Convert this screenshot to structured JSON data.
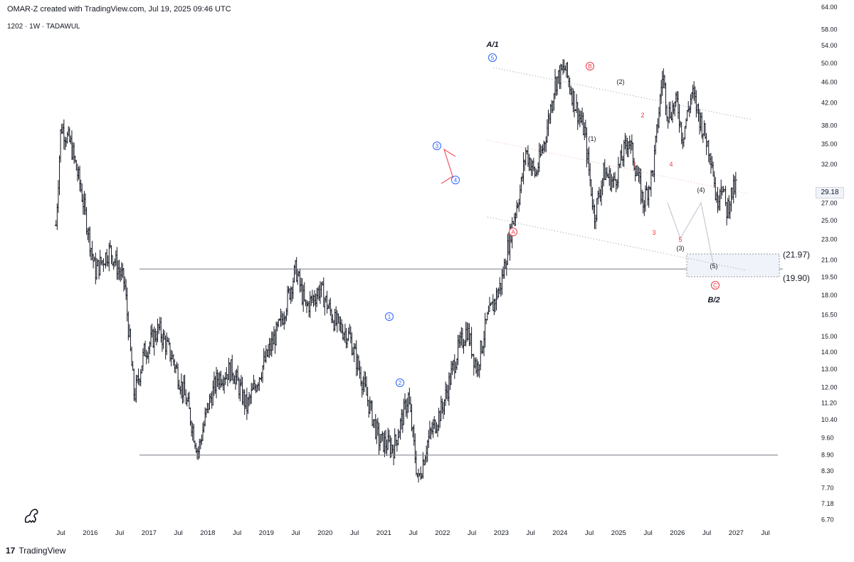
{
  "header": {
    "caption": "OMAR-Z created with TradingView.com, Jul 19, 2025 09:46 UTC",
    "symbol_line": "1202 · 1W · TADAWUL"
  },
  "last_price": "29.18",
  "footer": {
    "brand": "TradingView",
    "logo_glyph": "17"
  },
  "levels": {
    "upper": "(21.97)",
    "lower": "(19.90)"
  },
  "colors": {
    "bars": "#131722",
    "blue_wave": "#2962ff",
    "red_wave": "#f23645",
    "grid": "#e0e3eb"
  },
  "chart_data": {
    "type": "ohlc-bar",
    "y_scale": "log",
    "ylim": [
      6.5,
      64
    ],
    "y_ticks": [
      "64.00",
      "58.00",
      "54.00",
      "50.00",
      "46.00",
      "42.00",
      "38.00",
      "35.00",
      "32.00",
      "29.18",
      "27.00",
      "25.00",
      "23.00",
      "21.00",
      "19.50",
      "18.00",
      "16.50",
      "15.00",
      "14.00",
      "13.00",
      "12.00",
      "11.20",
      "10.40",
      "9.60",
      "8.90",
      "8.30",
      "7.70",
      "7.18",
      "6.70"
    ],
    "x_ticks": [
      "Jul",
      "2016",
      "Jul",
      "2017",
      "Jul",
      "2018",
      "Jul",
      "2019",
      "Jul",
      "2020",
      "Jul",
      "2021",
      "Jul",
      "2022",
      "Jul",
      "2023",
      "Jul",
      "2024",
      "Jul",
      "2025",
      "Jul",
      "2026",
      "Jul",
      "2027",
      "Jul"
    ],
    "x_range": [
      "2015-04",
      "2027-12"
    ],
    "price_path": [
      {
        "t": "2015-06",
        "p": 24.5
      },
      {
        "t": "2015-07",
        "p": 38
      },
      {
        "t": "2015-09",
        "p": 35
      },
      {
        "t": "2015-11",
        "p": 29
      },
      {
        "t": "2016-02",
        "p": 20
      },
      {
        "t": "2016-05",
        "p": 22
      },
      {
        "t": "2016-08",
        "p": 19
      },
      {
        "t": "2016-10",
        "p": 11.5
      },
      {
        "t": "2016-12",
        "p": 14
      },
      {
        "t": "2017-03",
        "p": 15.5
      },
      {
        "t": "2017-06",
        "p": 13.5
      },
      {
        "t": "2017-09",
        "p": 11
      },
      {
        "t": "2017-11",
        "p": 9
      },
      {
        "t": "2018-01",
        "p": 11
      },
      {
        "t": "2018-03",
        "p": 12.5
      },
      {
        "t": "2018-06",
        "p": 13
      },
      {
        "t": "2018-09",
        "p": 11
      },
      {
        "t": "2018-12",
        "p": 13
      },
      {
        "t": "2019-04",
        "p": 16
      },
      {
        "t": "2019-07",
        "p": 20.2
      },
      {
        "t": "2019-09",
        "p": 17
      },
      {
        "t": "2019-12",
        "p": 18.5
      },
      {
        "t": "2020-03",
        "p": 16
      },
      {
        "t": "2020-06",
        "p": 15
      },
      {
        "t": "2020-09",
        "p": 12
      },
      {
        "t": "2020-12",
        "p": 9.5
      },
      {
        "t": "2021-03",
        "p": 9.2
      },
      {
        "t": "2021-06",
        "p": 11.5
      },
      {
        "t": "2021-08",
        "p": 7.9
      },
      {
        "t": "2021-10",
        "p": 9.5
      },
      {
        "t": "2022-01",
        "p": 11
      },
      {
        "t": "2022-04",
        "p": 14
      },
      {
        "t": "2022-06",
        "p": 15.5
      },
      {
        "t": "2022-08",
        "p": 13
      },
      {
        "t": "2022-10",
        "p": 16
      },
      {
        "t": "2023-01",
        "p": 19
      },
      {
        "t": "2023-03",
        "p": 24
      },
      {
        "t": "2023-05",
        "p": 29
      },
      {
        "t": "2023-06",
        "p": 34
      },
      {
        "t": "2023-08",
        "p": 30.5
      },
      {
        "t": "2023-10",
        "p": 36
      },
      {
        "t": "2023-12",
        "p": 46
      },
      {
        "t": "2024-02",
        "p": 49
      },
      {
        "t": "2024-04",
        "p": 42
      },
      {
        "t": "2024-06",
        "p": 37
      },
      {
        "t": "2024-08",
        "p": 25.5
      },
      {
        "t": "2024-10",
        "p": 31
      },
      {
        "t": "2024-12",
        "p": 29.5
      },
      {
        "t": "2025-03",
        "p": 36
      },
      {
        "t": "2025-05",
        "p": 30
      },
      {
        "t": "2025-06",
        "p": 27
      },
      {
        "t": "2025-08",
        "p": 31
      },
      {
        "t": "2025-10",
        "p": 48
      },
      {
        "t": "2025-11",
        "p": 40
      },
      {
        "t": "2026-01",
        "p": 42
      },
      {
        "t": "2026-02",
        "p": 36
      },
      {
        "t": "2026-04",
        "p": 44
      },
      {
        "t": "2026-06",
        "p": 38
      },
      {
        "t": "2026-08",
        "p": 33
      },
      {
        "t": "2026-09",
        "p": 27
      },
      {
        "t": "2026-10",
        "p": 30
      },
      {
        "t": "2026-11",
        "p": 26
      },
      {
        "t": "2026-12",
        "p": 28
      },
      {
        "t": "2027-01",
        "p": 29.2
      }
    ],
    "wave_labels": {
      "top_title": "A/1",
      "bottom_title": "B/2",
      "blue": [
        "1",
        "2",
        "3",
        "4",
        "5"
      ],
      "red_circle": [
        "A",
        "B",
        "C"
      ],
      "black": [
        "(1)",
        "(2)",
        "(3)",
        "(4)",
        "(5)"
      ],
      "red_plain": [
        "1",
        "2",
        "3",
        "4",
        "5"
      ]
    },
    "horizontal_lines": [
      20.2,
      8.9
    ]
  }
}
